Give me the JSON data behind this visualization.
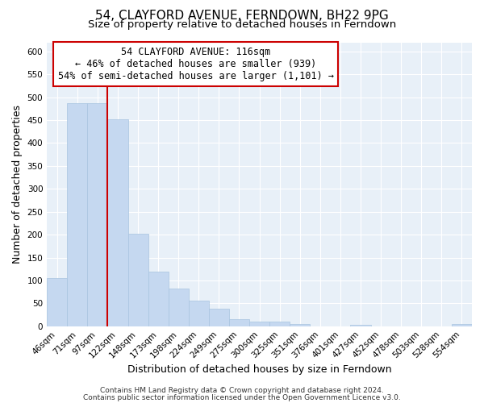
{
  "title": "54, CLAYFORD AVENUE, FERNDOWN, BH22 9PG",
  "subtitle": "Size of property relative to detached houses in Ferndown",
  "xlabel": "Distribution of detached houses by size in Ferndown",
  "ylabel": "Number of detached properties",
  "bar_labels": [
    "46sqm",
    "71sqm",
    "97sqm",
    "122sqm",
    "148sqm",
    "173sqm",
    "198sqm",
    "224sqm",
    "249sqm",
    "275sqm",
    "300sqm",
    "325sqm",
    "351sqm",
    "376sqm",
    "401sqm",
    "427sqm",
    "452sqm",
    "478sqm",
    "503sqm",
    "528sqm",
    "554sqm"
  ],
  "bar_values": [
    105,
    487,
    487,
    452,
    202,
    120,
    82,
    55,
    38,
    15,
    10,
    10,
    5,
    0,
    0,
    3,
    0,
    0,
    0,
    0,
    5
  ],
  "bar_color": "#c5d8f0",
  "bar_edge_color": "#a8c4e0",
  "vline_color": "#cc0000",
  "annotation_line1": "54 CLAYFORD AVENUE: 116sqm",
  "annotation_line2": "← 46% of detached houses are smaller (939)",
  "annotation_line3": "54% of semi-detached houses are larger (1,101) →",
  "annotation_box_color": "#cc0000",
  "ylim": [
    0,
    620
  ],
  "yticks": [
    0,
    50,
    100,
    150,
    200,
    250,
    300,
    350,
    400,
    450,
    500,
    550,
    600
  ],
  "fig_bg_color": "#ffffff",
  "plot_bg_color": "#e8f0f8",
  "footer_line1": "Contains HM Land Registry data © Crown copyright and database right 2024.",
  "footer_line2": "Contains public sector information licensed under the Open Government Licence v3.0.",
  "title_fontsize": 11,
  "subtitle_fontsize": 9.5,
  "axis_label_fontsize": 9,
  "tick_fontsize": 7.5,
  "annotation_fontsize": 8.5,
  "footer_fontsize": 6.5
}
